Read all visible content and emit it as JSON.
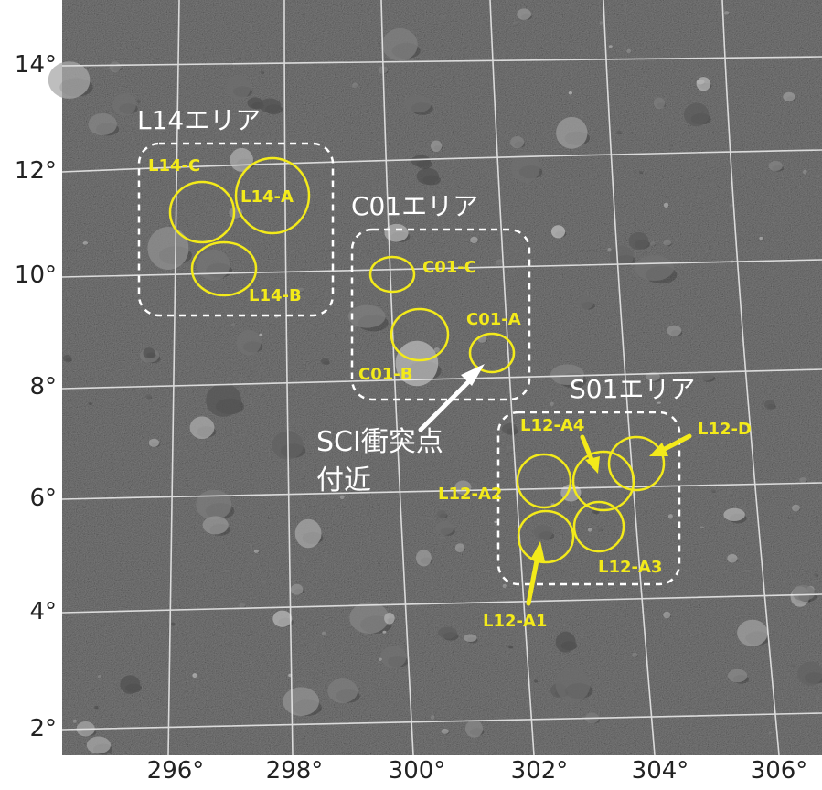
{
  "map": {
    "y_axis": {
      "unit": "degrees",
      "ticks": [
        "14°",
        "12°",
        "10°",
        "8°",
        "6°",
        "4°",
        "2°"
      ]
    },
    "x_axis": {
      "unit": "degrees",
      "ticks": [
        "296°",
        "298°",
        "300°",
        "302°",
        "304°",
        "306°"
      ]
    },
    "areas": [
      {
        "name": "L14エリア"
      },
      {
        "name": "C01エリア"
      },
      {
        "name": "S01エリア"
      }
    ],
    "sites": [
      "L14-A",
      "L14-B",
      "L14-C",
      "C01-A",
      "C01-B",
      "C01-C",
      "L12-A1",
      "L12-A2",
      "L12-A3",
      "L12-A4",
      "L12-D"
    ],
    "sci_impact": {
      "line1": "SCI衝突点",
      "line2": "付近"
    },
    "colors": {
      "site_circle": "#f3ea1a",
      "area_box": "#ffffff",
      "grid": "#e8e8e8",
      "terrain": "#6e6e6e"
    }
  }
}
